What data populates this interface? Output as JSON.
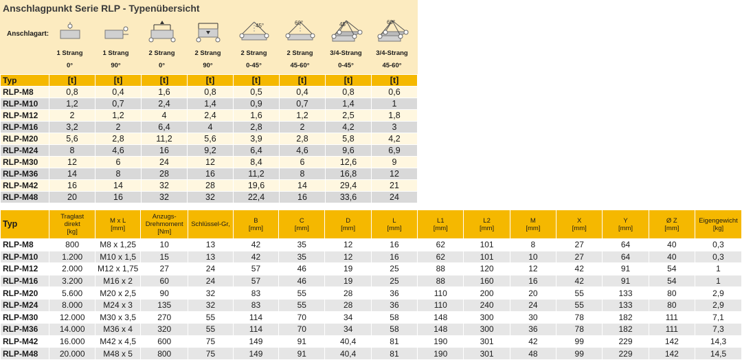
{
  "title": "Anschlagpunkt Serie RLP - Typenübersicht",
  "anschlagart_label": "Anschlagart:",
  "columns": [
    {
      "icon": "single-strand-vertical-icon",
      "line1": "1 Strang",
      "line2": "0°"
    },
    {
      "icon": "single-strand-horizontal-icon",
      "line1": "1 Strang",
      "line2": "90°"
    },
    {
      "icon": "two-strand-vertical-icon",
      "line1": "2 Strang",
      "line2": "0°"
    },
    {
      "icon": "two-strand-horizontal-icon",
      "line1": "2 Strang",
      "line2": "90°"
    },
    {
      "icon": "two-strand-45-icon",
      "line1": "2 Strang",
      "line2": "0-45°",
      "angle": "45°"
    },
    {
      "icon": "two-strand-60-icon",
      "line1": "2 Strang",
      "line2": "45-60°",
      "angle": "60°"
    },
    {
      "icon": "four-strand-45-icon",
      "line1": "3/4-Strang",
      "line2": "0-45°",
      "angle": "45°"
    },
    {
      "icon": "four-strand-60-icon",
      "line1": "3/4-Strang",
      "line2": "45-60°",
      "angle": "60°"
    }
  ],
  "table1": {
    "header_typ": "Typ",
    "header_unit": "[t]",
    "rows": [
      {
        "typ": "RLP-M8",
        "values": [
          "0,8",
          "0,4",
          "1,6",
          "0,8",
          "0,5",
          "0,4",
          "0,8",
          "0,6"
        ]
      },
      {
        "typ": "RLP-M10",
        "values": [
          "1,2",
          "0,7",
          "2,4",
          "1,4",
          "0,9",
          "0,7",
          "1,4",
          "1"
        ]
      },
      {
        "typ": "RLP-M12",
        "values": [
          "2",
          "1,2",
          "4",
          "2,4",
          "1,6",
          "1,2",
          "2,5",
          "1,8"
        ]
      },
      {
        "typ": "RLP-M16",
        "values": [
          "3,2",
          "2",
          "6,4",
          "4",
          "2,8",
          "2",
          "4,2",
          "3"
        ]
      },
      {
        "typ": "RLP-M20",
        "values": [
          "5,6",
          "2,8",
          "11,2",
          "5,6",
          "3,9",
          "2,8",
          "5,8",
          "4,2"
        ]
      },
      {
        "typ": "RLP-M24",
        "values": [
          "8",
          "4,6",
          "16",
          "9,2",
          "6,4",
          "4,6",
          "9,6",
          "6,9"
        ]
      },
      {
        "typ": "RLP-M30",
        "values": [
          "12",
          "6",
          "24",
          "12",
          "8,4",
          "6",
          "12,6",
          "9"
        ]
      },
      {
        "typ": "RLP-M36",
        "values": [
          "14",
          "8",
          "28",
          "16",
          "11,2",
          "8",
          "16,8",
          "12"
        ]
      },
      {
        "typ": "RLP-M42",
        "values": [
          "16",
          "14",
          "32",
          "28",
          "19,6",
          "14",
          "29,4",
          "21"
        ]
      },
      {
        "typ": "RLP-M48",
        "values": [
          "20",
          "16",
          "32",
          "32",
          "22,4",
          "16",
          "33,6",
          "24"
        ]
      }
    ]
  },
  "table2": {
    "headers": [
      {
        "l1": "Typ",
        "l2": "",
        "l3": ""
      },
      {
        "l1": "Traglast",
        "l2": "direkt",
        "l3": "[kg]"
      },
      {
        "l1": "M x L",
        "l2": "[mm]",
        "l3": ""
      },
      {
        "l1": "Anzugs-",
        "l2": "Drehmoment",
        "l3": "[Nm]"
      },
      {
        "l1": "Schlüssel-Gr,",
        "l2": "",
        "l3": ""
      },
      {
        "l1": "B",
        "l2": "[mm]",
        "l3": ""
      },
      {
        "l1": "C",
        "l2": "[mm]",
        "l3": ""
      },
      {
        "l1": "D",
        "l2": "[mm]",
        "l3": ""
      },
      {
        "l1": "L",
        "l2": "[mm]",
        "l3": ""
      },
      {
        "l1": "L1",
        "l2": "[mm]",
        "l3": ""
      },
      {
        "l1": "L2",
        "l2": "[mm]",
        "l3": ""
      },
      {
        "l1": "M",
        "l2": "[mm]",
        "l3": ""
      },
      {
        "l1": "X",
        "l2": "[mm]",
        "l3": ""
      },
      {
        "l1": "Y",
        "l2": "[mm]",
        "l3": ""
      },
      {
        "l1": "Ø Z",
        "l2": "[mm]",
        "l3": ""
      },
      {
        "l1": "Eigengewicht",
        "l2": "[kg]",
        "l3": ""
      }
    ],
    "rows": [
      [
        "RLP-M8",
        "800",
        "M8 x 1,25",
        "10",
        "13",
        "42",
        "35",
        "12",
        "16",
        "62",
        "101",
        "8",
        "27",
        "64",
        "40",
        "0,3"
      ],
      [
        "RLP-M10",
        "1.200",
        "M10 x 1,5",
        "15",
        "13",
        "42",
        "35",
        "12",
        "16",
        "62",
        "101",
        "10",
        "27",
        "64",
        "40",
        "0,3"
      ],
      [
        "RLP-M12",
        "2.000",
        "M12 x 1,75",
        "27",
        "24",
        "57",
        "46",
        "19",
        "25",
        "88",
        "120",
        "12",
        "42",
        "91",
        "54",
        "1"
      ],
      [
        "RLP-M16",
        "3.200",
        "M16 x 2",
        "60",
        "24",
        "57",
        "46",
        "19",
        "25",
        "88",
        "160",
        "16",
        "42",
        "91",
        "54",
        "1"
      ],
      [
        "RLP-M20",
        "5.600",
        "M20 x 2,5",
        "90",
        "32",
        "83",
        "55",
        "28",
        "36",
        "110",
        "200",
        "20",
        "55",
        "133",
        "80",
        "2,9"
      ],
      [
        "RLP-M24",
        "8.000",
        "M24 x 3",
        "135",
        "32",
        "83",
        "55",
        "28",
        "36",
        "110",
        "240",
        "24",
        "55",
        "133",
        "80",
        "2,9"
      ],
      [
        "RLP-M30",
        "12.000",
        "M30 x 3,5",
        "270",
        "55",
        "114",
        "70",
        "34",
        "58",
        "148",
        "300",
        "30",
        "78",
        "182",
        "111",
        "7,1"
      ],
      [
        "RLP-M36",
        "14.000",
        "M36 x 4",
        "320",
        "55",
        "114",
        "70",
        "34",
        "58",
        "148",
        "300",
        "36",
        "78",
        "182",
        "111",
        "7,3"
      ],
      [
        "RLP-M42",
        "16.000",
        "M42 x 4,5",
        "600",
        "75",
        "149",
        "91",
        "40,4",
        "81",
        "190",
        "301",
        "42",
        "99",
        "229",
        "142",
        "14,3"
      ],
      [
        "RLP-M48",
        "20.000",
        "M48 x 5",
        "800",
        "75",
        "149",
        "91",
        "40,4",
        "81",
        "190",
        "301",
        "48",
        "99",
        "229",
        "142",
        "14,5"
      ]
    ]
  }
}
